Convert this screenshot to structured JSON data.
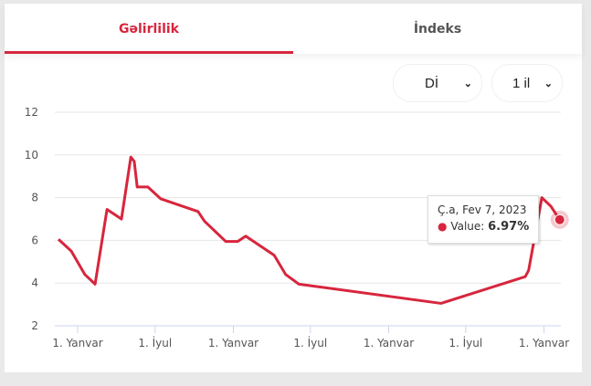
{
  "tabs": [
    {
      "label": "Gəlirlilik",
      "active": true
    },
    {
      "label": "İndeks",
      "active": false
    }
  ],
  "selects": {
    "currency": "Dİ",
    "period": "1 il"
  },
  "tooltip": {
    "date": "Ç.a, Fev 7, 2023",
    "label": "Value: ",
    "value": "6.97%"
  },
  "colors": {
    "accent": "#d7263d"
  },
  "chart_data": {
    "type": "line",
    "title": "",
    "xlabel": "",
    "ylabel": "",
    "ylim": [
      2,
      12
    ],
    "yticks": [
      "2",
      "4",
      "6",
      "8",
      "10",
      "12"
    ],
    "xticks": [
      {
        "date": "2020-01-01",
        "label": "1. Yanvar"
      },
      {
        "date": "2020-07-01",
        "label": "1. İyul"
      },
      {
        "date": "2021-01-01",
        "label": "1. Yanvar"
      },
      {
        "date": "2021-07-01",
        "label": "1. İyul"
      },
      {
        "date": "2022-01-01",
        "label": "1. Yanvar"
      },
      {
        "date": "2022-07-01",
        "label": "1. İyul"
      },
      {
        "date": "2023-01-01",
        "label": "1. Yanvar"
      }
    ],
    "grid": true,
    "series": [
      {
        "color": "#d7263d",
        "points": [
          [
            "2019-11-17",
            6.05
          ],
          [
            "2019-12-17",
            5.5
          ],
          [
            "2020-01-18",
            4.4
          ],
          [
            "2020-02-11",
            3.95
          ],
          [
            "2020-03-10",
            7.45
          ],
          [
            "2020-04-13",
            7.0
          ],
          [
            "2020-05-05",
            9.9
          ],
          [
            "2020-05-13",
            9.7
          ],
          [
            "2020-05-20",
            8.5
          ],
          [
            "2020-06-14",
            8.5
          ],
          [
            "2020-07-14",
            7.95
          ],
          [
            "2020-10-10",
            7.35
          ],
          [
            "2020-10-25",
            6.9
          ],
          [
            "2020-12-14",
            5.95
          ],
          [
            "2021-01-11",
            5.95
          ],
          [
            "2021-01-30",
            6.2
          ],
          [
            "2021-04-07",
            5.3
          ],
          [
            "2021-05-04",
            4.4
          ],
          [
            "2021-06-04",
            3.95
          ],
          [
            "2022-05-04",
            3.05
          ],
          [
            "2022-11-18",
            4.3
          ],
          [
            "2022-11-26",
            4.6
          ],
          [
            "2022-12-27",
            8.0
          ],
          [
            "2023-01-17",
            7.6
          ],
          [
            "2023-02-07",
            6.97
          ]
        ]
      }
    ]
  }
}
